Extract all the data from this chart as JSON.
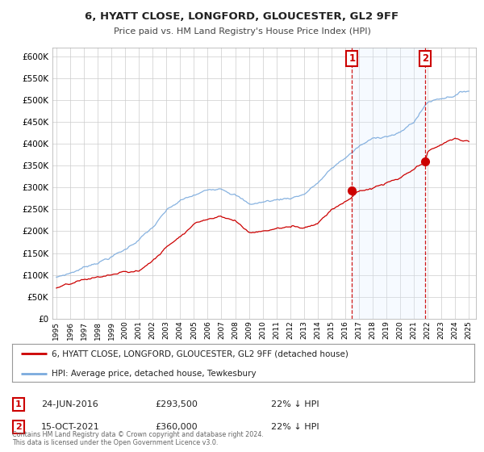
{
  "title": "6, HYATT CLOSE, LONGFORD, GLOUCESTER, GL2 9FF",
  "subtitle": "Price paid vs. HM Land Registry's House Price Index (HPI)",
  "legend_line1": "6, HYATT CLOSE, LONGFORD, GLOUCESTER, GL2 9FF (detached house)",
  "legend_line2": "HPI: Average price, detached house, Tewkesbury",
  "annotation1_date": "24-JUN-2016",
  "annotation1_price": "£293,500",
  "annotation1_hpi": "22% ↓ HPI",
  "annotation1_year": 2016.5,
  "annotation1_value": 293500,
  "annotation2_date": "15-OCT-2021",
  "annotation2_price": "£360,000",
  "annotation2_hpi": "22% ↓ HPI",
  "annotation2_year": 2021.8,
  "annotation2_value": 360000,
  "red_color": "#cc0000",
  "blue_color": "#7aaadd",
  "shade_color": "#ddeeff",
  "background_color": "#ffffff",
  "plot_bg_color": "#ffffff",
  "grid_color": "#cccccc",
  "footer_text": "Contains HM Land Registry data © Crown copyright and database right 2024.\nThis data is licensed under the Open Government Licence v3.0.",
  "ylim": [
    0,
    620000
  ],
  "xlim_start": 1994.7,
  "xlim_end": 2025.5,
  "hpi_anchors_x": [
    1995,
    1996,
    1997,
    1998,
    1999,
    2000,
    2001,
    2002,
    2003,
    2004,
    2005,
    2006,
    2007,
    2008,
    2009,
    2010,
    2011,
    2012,
    2013,
    2014,
    2015,
    2016,
    2017,
    2018,
    2019,
    2020,
    2021,
    2022,
    2023,
    2024,
    2025
  ],
  "hpi_anchors_y": [
    95000,
    105000,
    118000,
    132000,
    145000,
    160000,
    185000,
    210000,
    245000,
    265000,
    275000,
    285000,
    295000,
    285000,
    260000,
    265000,
    270000,
    275000,
    285000,
    310000,
    340000,
    365000,
    390000,
    405000,
    415000,
    420000,
    445000,
    490000,
    500000,
    510000,
    520000
  ],
  "red_anchors_x": [
    1995,
    1996,
    1997,
    1998,
    1999,
    2000,
    2001,
    2002,
    2003,
    2004,
    2005,
    2006,
    2007,
    2008,
    2009,
    2010,
    2011,
    2012,
    2013,
    2014,
    2015,
    2016.5,
    2017,
    2018,
    2019,
    2020,
    2021.8,
    2022,
    2023,
    2024,
    2025
  ],
  "red_anchors_y": [
    70000,
    75000,
    82000,
    88000,
    93000,
    98000,
    100000,
    125000,
    155000,
    185000,
    215000,
    228000,
    238000,
    228000,
    202000,
    205000,
    212000,
    215000,
    215000,
    228000,
    262000,
    293500,
    305000,
    312000,
    322000,
    330000,
    360000,
    382000,
    400000,
    412000,
    405000
  ]
}
